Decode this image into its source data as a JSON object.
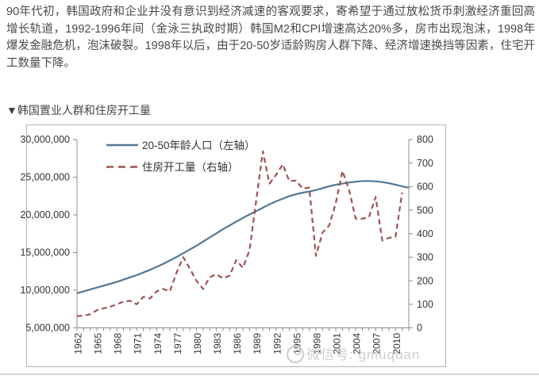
{
  "intro": {
    "text": "90年代初，韩国政府和企业并没有意识到经济减速的客观要求，寄希望于通过放松货币刺激经济重回高增长轨道，1992-1996年间（金泳三执政时期）韩国M2和CPI增速高达20%多，房市出现泡沫，1998年爆发金融危机，泡沫破裂。1998年以后，由于20-50岁适龄购房人群下降、经济增速换挡等因素，住宅开工数量下降。"
  },
  "section": {
    "title": "▼韩国置业人群和住房开工量"
  },
  "watermark": {
    "icon": "wechat-circle-icon",
    "text": "微信号: gmuquan",
    "color": "#cccccc"
  },
  "chart_data": {
    "type": "line",
    "title": "韩国置业人群和住房开工量",
    "grid": false,
    "legend_position": "top-left",
    "years": [
      1962,
      1963,
      1964,
      1965,
      1966,
      1967,
      1968,
      1969,
      1970,
      1971,
      1972,
      1973,
      1974,
      1975,
      1976,
      1977,
      1978,
      1979,
      1980,
      1981,
      1982,
      1983,
      1984,
      1985,
      1986,
      1987,
      1988,
      1989,
      1990,
      1991,
      1992,
      1993,
      1994,
      1995,
      1996,
      1997,
      1998,
      1999,
      2000,
      2001,
      2002,
      2003,
      2004,
      2005,
      2006,
      2007,
      2008,
      2009,
      2010,
      2011,
      2012
    ],
    "x_label_years": [
      "1962",
      "1965",
      "1968",
      "1971",
      "1974",
      "1977",
      "1980",
      "1983",
      "1986",
      "1989",
      "1992",
      "1995",
      "1998",
      "2001",
      "2004",
      "2007",
      "2010"
    ],
    "left_axis": {
      "min": 5000000,
      "max": 30000000,
      "ticks": [
        30000000,
        25000000,
        20000000,
        15000000,
        10000000,
        5000000
      ]
    },
    "right_axis": {
      "min": 0,
      "max": 800,
      "ticks": [
        800,
        700,
        600,
        500,
        400,
        300,
        200,
        100,
        0
      ]
    },
    "series": [
      {
        "name": "20-50年龄人口（左轴）",
        "axis": "left",
        "line": "solid",
        "color": "#537795",
        "values": [
          9600000,
          9850000,
          10100000,
          10350000,
          10600000,
          10850000,
          11100000,
          11400000,
          11700000,
          12000000,
          12350000,
          12700000,
          13100000,
          13500000,
          13950000,
          14400000,
          14900000,
          15400000,
          15900000,
          16450000,
          17000000,
          17550000,
          18100000,
          18600000,
          19100000,
          19600000,
          20050000,
          20500000,
          20950000,
          21400000,
          21800000,
          22150000,
          22500000,
          22750000,
          22950000,
          23100000,
          23300000,
          23550000,
          23800000,
          24000000,
          24150000,
          24300000,
          24400000,
          24500000,
          24500000,
          24450000,
          24350000,
          24200000,
          24000000,
          23800000,
          23600000
        ]
      },
      {
        "name": "住房开工量（右轴）",
        "axis": "right",
        "line": "dashed",
        "color": "#9d5350",
        "values": [
          50,
          52,
          58,
          75,
          83,
          90,
          100,
          112,
          115,
          100,
          132,
          125,
          155,
          165,
          155,
          235,
          300,
          252,
          200,
          165,
          215,
          228,
          210,
          222,
          288,
          255,
          330,
          540,
          750,
          613,
          650,
          695,
          623,
          626,
          592,
          596,
          306,
          405,
          435,
          530,
          667,
          585,
          464,
          464,
          470,
          556,
          371,
          382,
          387,
          575,
          null
        ]
      }
    ],
    "colors": {
      "axis": "#8c8c8c",
      "border": "#b5b5b5",
      "tick_text": "#333333",
      "legend_text": "#333333"
    }
  }
}
